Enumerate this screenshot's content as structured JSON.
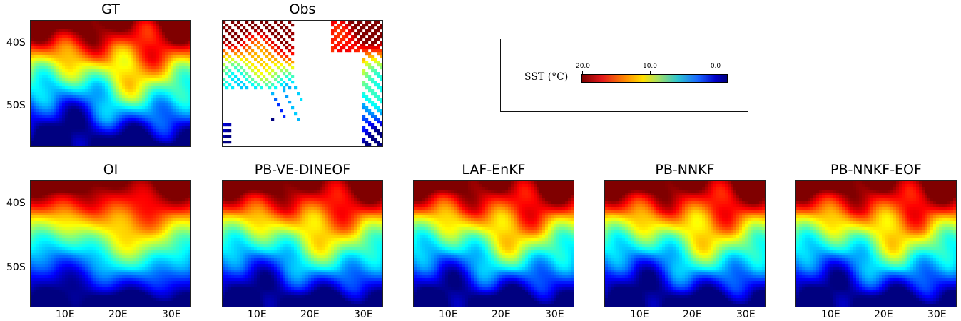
{
  "chart_data": {
    "type": "heatmap",
    "panels": [
      {
        "id": "gt",
        "title": "GT",
        "y_ticks": [
          "40S",
          "50S"
        ],
        "x_ticks": []
      },
      {
        "id": "obs",
        "title": "Obs",
        "y_ticks": [],
        "x_ticks": []
      },
      {
        "id": "oi",
        "title": "OI",
        "y_ticks": [
          "40S",
          "50S"
        ],
        "x_ticks": [
          "10E",
          "20E",
          "30E"
        ]
      },
      {
        "id": "pbvedineof",
        "title": "PB-VE-DINEOF",
        "y_ticks": [],
        "x_ticks": [
          "10E",
          "20E",
          "30E"
        ]
      },
      {
        "id": "lafenkf",
        "title": "LAF-EnKF",
        "y_ticks": [],
        "x_ticks": [
          "10E",
          "20E",
          "30E"
        ]
      },
      {
        "id": "pbnnkf",
        "title": "PB-NNKF",
        "y_ticks": [],
        "x_ticks": [
          "10E",
          "20E",
          "30E"
        ]
      },
      {
        "id": "pbnnkfeof",
        "title": "PB-NNKF-EOF",
        "y_ticks": [],
        "x_ticks": [
          "10E",
          "20E",
          "30E"
        ]
      }
    ],
    "colorbar": {
      "label": "SST (°C)",
      "ticks": [
        "20.0",
        "10.0",
        "0.0"
      ],
      "range": [
        20.0,
        0.0
      ],
      "colormap": "jet_reversed"
    }
  }
}
